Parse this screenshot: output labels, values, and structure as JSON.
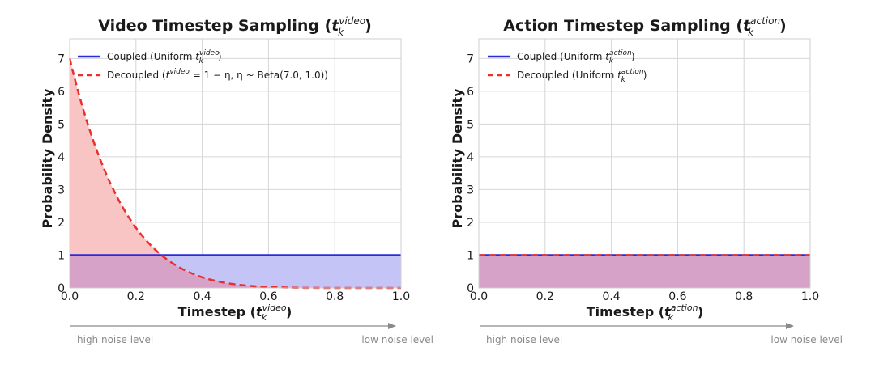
{
  "colors": {
    "coupled": "#2b2bdc",
    "coupled_fill": "#c4c4f6",
    "decoupled": "#e8302c",
    "decoupled_fill": "#f8c4c4",
    "overlap_fill": "#d6a2c8",
    "grid": "#d6d6d6",
    "arrow": "#8a8a8a"
  },
  "chart_data": [
    {
      "type": "area",
      "title_main": "Video Timestep Sampling (",
      "title_var": "t",
      "title_sub": "k",
      "title_sup": "video",
      "title_close": ")",
      "xlabel_main": "Timestep (",
      "xlabel_var": "t",
      "xlabel_sub": "k",
      "xlabel_sup": "video",
      "xlabel_close": ")",
      "ylabel": "Probability Density",
      "xlim": [
        0,
        1
      ],
      "ylim": [
        0,
        7.6
      ],
      "xticks": [
        "0.0",
        "0.2",
        "0.4",
        "0.6",
        "0.8",
        "1.0"
      ],
      "xtick_values": [
        0,
        0.2,
        0.4,
        0.6,
        0.8,
        1.0
      ],
      "yticks": [
        "0",
        "1",
        "2",
        "3",
        "4",
        "5",
        "6",
        "7"
      ],
      "ytick_values": [
        0,
        1,
        2,
        3,
        4,
        5,
        6,
        7
      ],
      "grid": true,
      "legend_position": "top-left",
      "series": [
        {
          "name": "Coupled (Uniform t_k^video)",
          "legend_prefix": "Coupled (Uniform ",
          "legend_var": "t",
          "legend_sub": "k",
          "legend_sup": "video",
          "legend_suffix": ")",
          "style": "solid",
          "distribution": "uniform",
          "density": 1
        },
        {
          "name": "Decoupled (t_k^video = 1 − η, η ~ Beta(7.0, 1.0))",
          "legend_prefix": "Decoupled (",
          "legend_var": "t",
          "legend_sup": "video",
          "legend_suffix": " = 1 − η,  η ~ Beta(7.0, 1.0))",
          "style": "dashed",
          "distribution": "beta",
          "alpha": 7.0,
          "beta": 1.0,
          "reversed": true
        }
      ]
    },
    {
      "type": "area",
      "title_main": "Action Timestep Sampling (",
      "title_var": "t",
      "title_sub": "k",
      "title_sup": "action",
      "title_close": ")",
      "xlabel_main": "Timestep (",
      "xlabel_var": "t",
      "xlabel_sub": "k",
      "xlabel_sup": "action",
      "xlabel_close": ")",
      "ylabel": "Probability Density",
      "xlim": [
        0,
        1
      ],
      "ylim": [
        0,
        7.6
      ],
      "xticks": [
        "0.0",
        "0.2",
        "0.4",
        "0.6",
        "0.8",
        "1.0"
      ],
      "xtick_values": [
        0,
        0.2,
        0.4,
        0.6,
        0.8,
        1.0
      ],
      "yticks": [
        "0",
        "1",
        "2",
        "3",
        "4",
        "5",
        "6",
        "7"
      ],
      "ytick_values": [
        0,
        1,
        2,
        3,
        4,
        5,
        6,
        7
      ],
      "grid": true,
      "legend_position": "top-left",
      "series": [
        {
          "name": "Coupled (Uniform t_k^action)",
          "legend_prefix": "Coupled (Uniform ",
          "legend_var": "t",
          "legend_sub": "k",
          "legend_sup": "action",
          "legend_suffix": ")",
          "style": "solid",
          "distribution": "uniform",
          "density": 1
        },
        {
          "name": "Decoupled (Uniform t_k^action)",
          "legend_prefix": "Decoupled (Uniform ",
          "legend_var": "t",
          "legend_sub": "k",
          "legend_sup": "action",
          "legend_suffix": ")",
          "style": "dashed",
          "distribution": "uniform",
          "density": 1
        }
      ]
    }
  ],
  "noise_axis": {
    "left_label": "high noise level",
    "right_label": "low noise level"
  }
}
